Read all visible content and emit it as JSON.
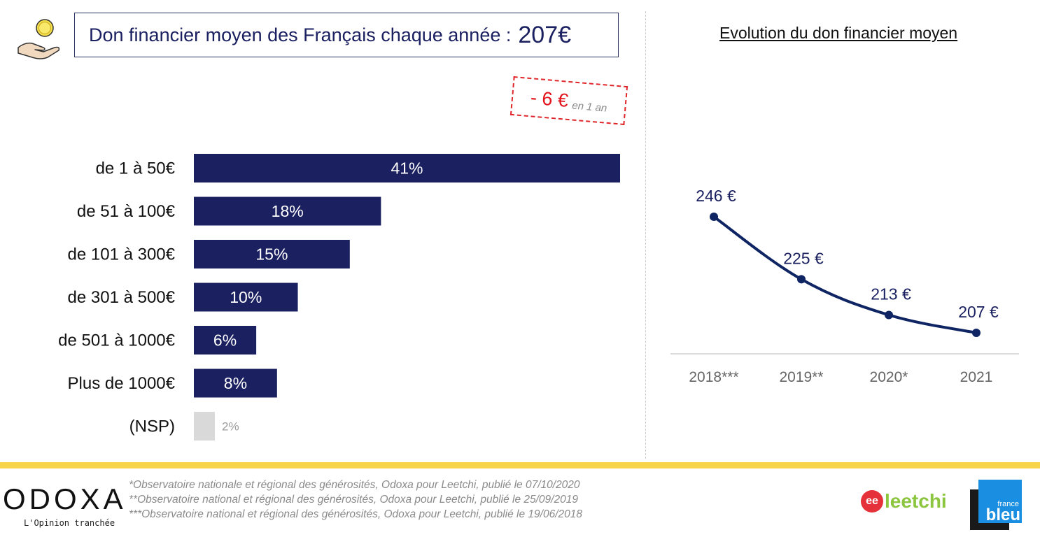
{
  "header": {
    "title": "Don financier moyen des Français chaque année :",
    "title_value": "207€"
  },
  "change_badge": {
    "value": "- 6 €",
    "suffix": "en 1 an"
  },
  "colors": {
    "navy": "#1b2160",
    "muted_bar": "#d9d9d9",
    "accent_red": "#e3121b",
    "footer_yellow": "#f6d54a",
    "line": "#0e2463"
  },
  "chart_data": [
    {
      "type": "bar",
      "orientation": "horizontal",
      "title": "",
      "categories": [
        "de 1 à 50€",
        "de 51 à 100€",
        "de 101 à 300€",
        "de 301 à 500€",
        "de 501 à 1000€",
        "Plus de 1000€",
        "(NSP)"
      ],
      "values": [
        41,
        18,
        15,
        10,
        6,
        8,
        2
      ],
      "value_labels": [
        "41%",
        "18%",
        "15%",
        "10%",
        "6%",
        "8%",
        "2%"
      ],
      "unit": "%",
      "xlim": [
        0,
        41
      ],
      "grid": false,
      "legend": "none"
    },
    {
      "type": "line",
      "title": "Evolution du don financier moyen",
      "categories": [
        "2018***",
        "2019**",
        "2020*",
        "2021"
      ],
      "values": [
        246,
        225,
        213,
        207
      ],
      "value_labels": [
        "246 €",
        "225 €",
        "213 €",
        "207 €"
      ],
      "unit": "€",
      "ylim": [
        170,
        255
      ],
      "grid": false,
      "legend": "none"
    }
  ],
  "footer": {
    "brand": "ODOXA",
    "tagline": "L'Opinion tranchée",
    "footnotes": [
      "*Observatoire nationale et régional des générosités, Odoxa pour Leetchi, publié le 07/10/2020",
      "**Observatoire national et régional des générosités, Odoxa pour Leetchi, publié le 25/09/2019",
      "***Observatoire national et régional des générosités, Odoxa pour Leetchi, publié le 19/06/2018"
    ],
    "partner1": "leetchi",
    "partner1_mark": "ee",
    "partner2_top": "france",
    "partner2_bottom": "bleu"
  }
}
